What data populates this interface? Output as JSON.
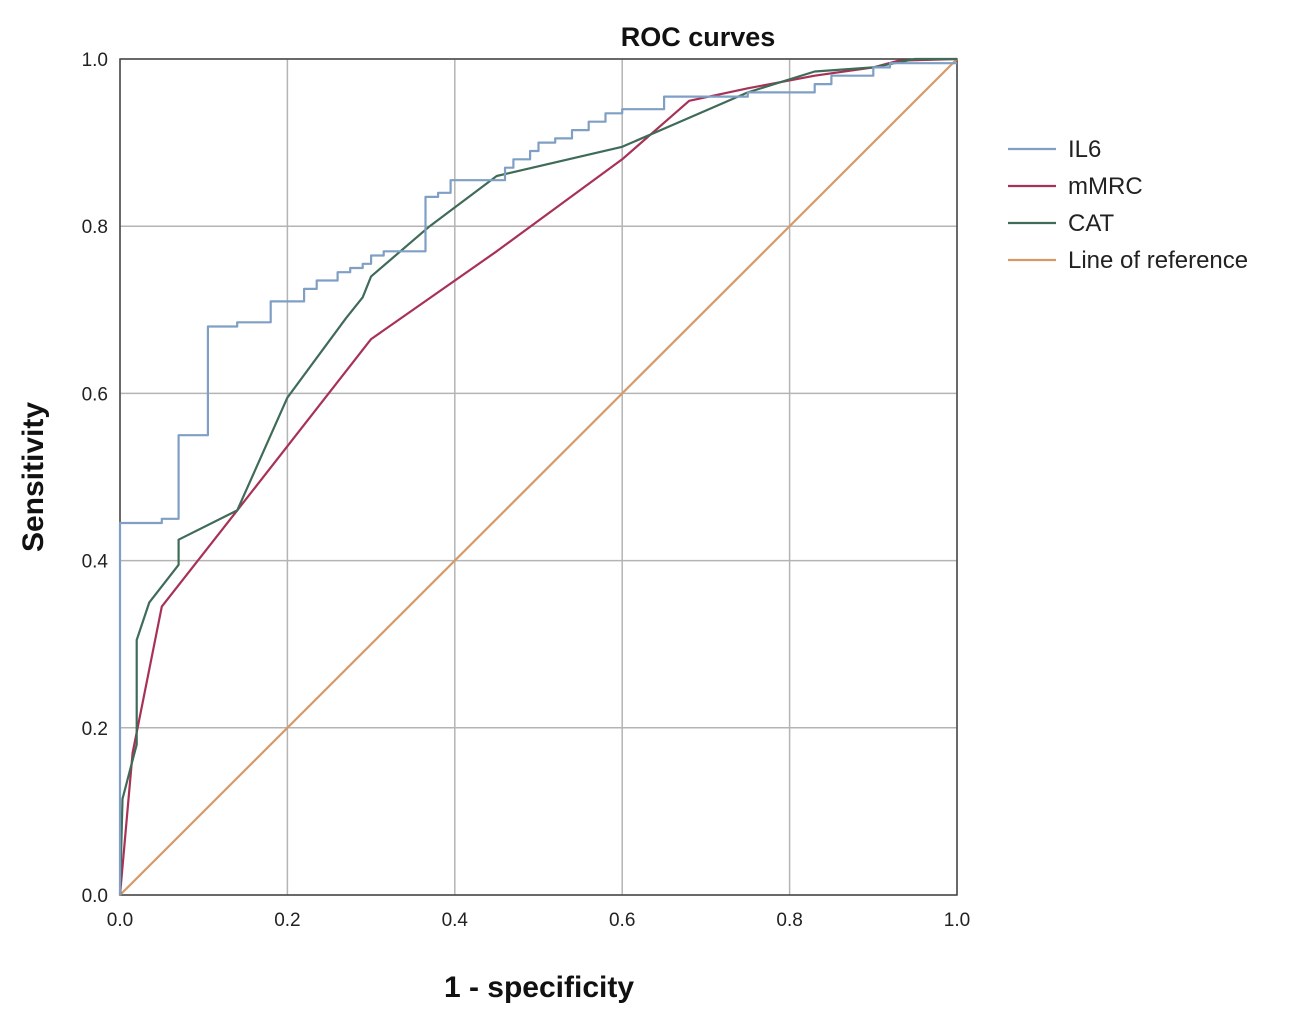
{
  "chart_data": {
    "type": "line",
    "title": "ROC curves",
    "xlabel": "1 - specificity",
    "ylabel": "Sensitivity",
    "xlim": [
      0,
      1
    ],
    "ylim": [
      0,
      1
    ],
    "grid": true,
    "legend_position": "right",
    "x_ticks": [
      "0.0",
      "0.2",
      "0.4",
      "0.6",
      "0.8",
      "1.0"
    ],
    "y_ticks": [
      "0.0",
      "0.2",
      "0.4",
      "0.6",
      "0.8",
      "1.0"
    ],
    "x_tick_values": [
      0,
      0.2,
      0.4,
      0.6,
      0.8,
      1.0
    ],
    "y_tick_values": [
      0,
      0.2,
      0.4,
      0.6,
      0.8,
      1.0
    ],
    "series": [
      {
        "name": "IL6",
        "color": "#7f9fc4",
        "x": [
          0,
          0,
          0.05,
          0.05,
          0.07,
          0.07,
          0.105,
          0.105,
          0.14,
          0.14,
          0.18,
          0.18,
          0.22,
          0.22,
          0.235,
          0.235,
          0.26,
          0.26,
          0.275,
          0.275,
          0.29,
          0.29,
          0.3,
          0.3,
          0.315,
          0.315,
          0.365,
          0.365,
          0.38,
          0.38,
          0.395,
          0.395,
          0.46,
          0.46,
          0.47,
          0.47,
          0.49,
          0.49,
          0.5,
          0.5,
          0.52,
          0.52,
          0.54,
          0.54,
          0.56,
          0.56,
          0.58,
          0.58,
          0.6,
          0.6,
          0.65,
          0.65,
          0.75,
          0.75,
          0.83,
          0.83,
          0.85,
          0.85,
          0.9,
          0.9,
          0.92,
          0.92,
          0.95,
          1.0
        ],
        "y": [
          0,
          0.445,
          0.445,
          0.45,
          0.45,
          0.55,
          0.55,
          0.68,
          0.68,
          0.685,
          0.685,
          0.71,
          0.71,
          0.725,
          0.725,
          0.735,
          0.735,
          0.745,
          0.745,
          0.75,
          0.75,
          0.755,
          0.755,
          0.765,
          0.765,
          0.77,
          0.77,
          0.835,
          0.835,
          0.84,
          0.84,
          0.855,
          0.855,
          0.87,
          0.87,
          0.88,
          0.88,
          0.89,
          0.89,
          0.9,
          0.9,
          0.905,
          0.905,
          0.915,
          0.915,
          0.925,
          0.925,
          0.935,
          0.935,
          0.94,
          0.94,
          0.955,
          0.955,
          0.96,
          0.96,
          0.97,
          0.97,
          0.98,
          0.98,
          0.99,
          0.99,
          0.995,
          0.995,
          0.995
        ]
      },
      {
        "name": "mMRC",
        "color": "#a83256",
        "x": [
          0,
          0.015,
          0.05,
          0.14,
          0.3,
          0.45,
          0.6,
          0.68,
          0.75,
          0.83,
          0.9,
          0.93,
          1.0
        ],
        "y": [
          0,
          0.17,
          0.345,
          0.46,
          0.665,
          0.77,
          0.88,
          0.95,
          0.965,
          0.98,
          0.99,
          0.998,
          1.0
        ]
      },
      {
        "name": "CAT",
        "color": "#3f6b58",
        "x": [
          0,
          0.003,
          0.02,
          0.02,
          0.035,
          0.07,
          0.07,
          0.14,
          0.2,
          0.27,
          0.29,
          0.3,
          0.37,
          0.45,
          0.6,
          0.75,
          0.83,
          0.9,
          0.95,
          1.0
        ],
        "y": [
          0,
          0.115,
          0.18,
          0.305,
          0.35,
          0.395,
          0.425,
          0.46,
          0.595,
          0.69,
          0.715,
          0.74,
          0.8,
          0.86,
          0.895,
          0.96,
          0.985,
          0.99,
          1.0,
          1.0
        ]
      },
      {
        "name": " Line of reference",
        "color": "#d69a6a",
        "x": [
          0,
          1
        ],
        "y": [
          0,
          1
        ]
      }
    ]
  }
}
